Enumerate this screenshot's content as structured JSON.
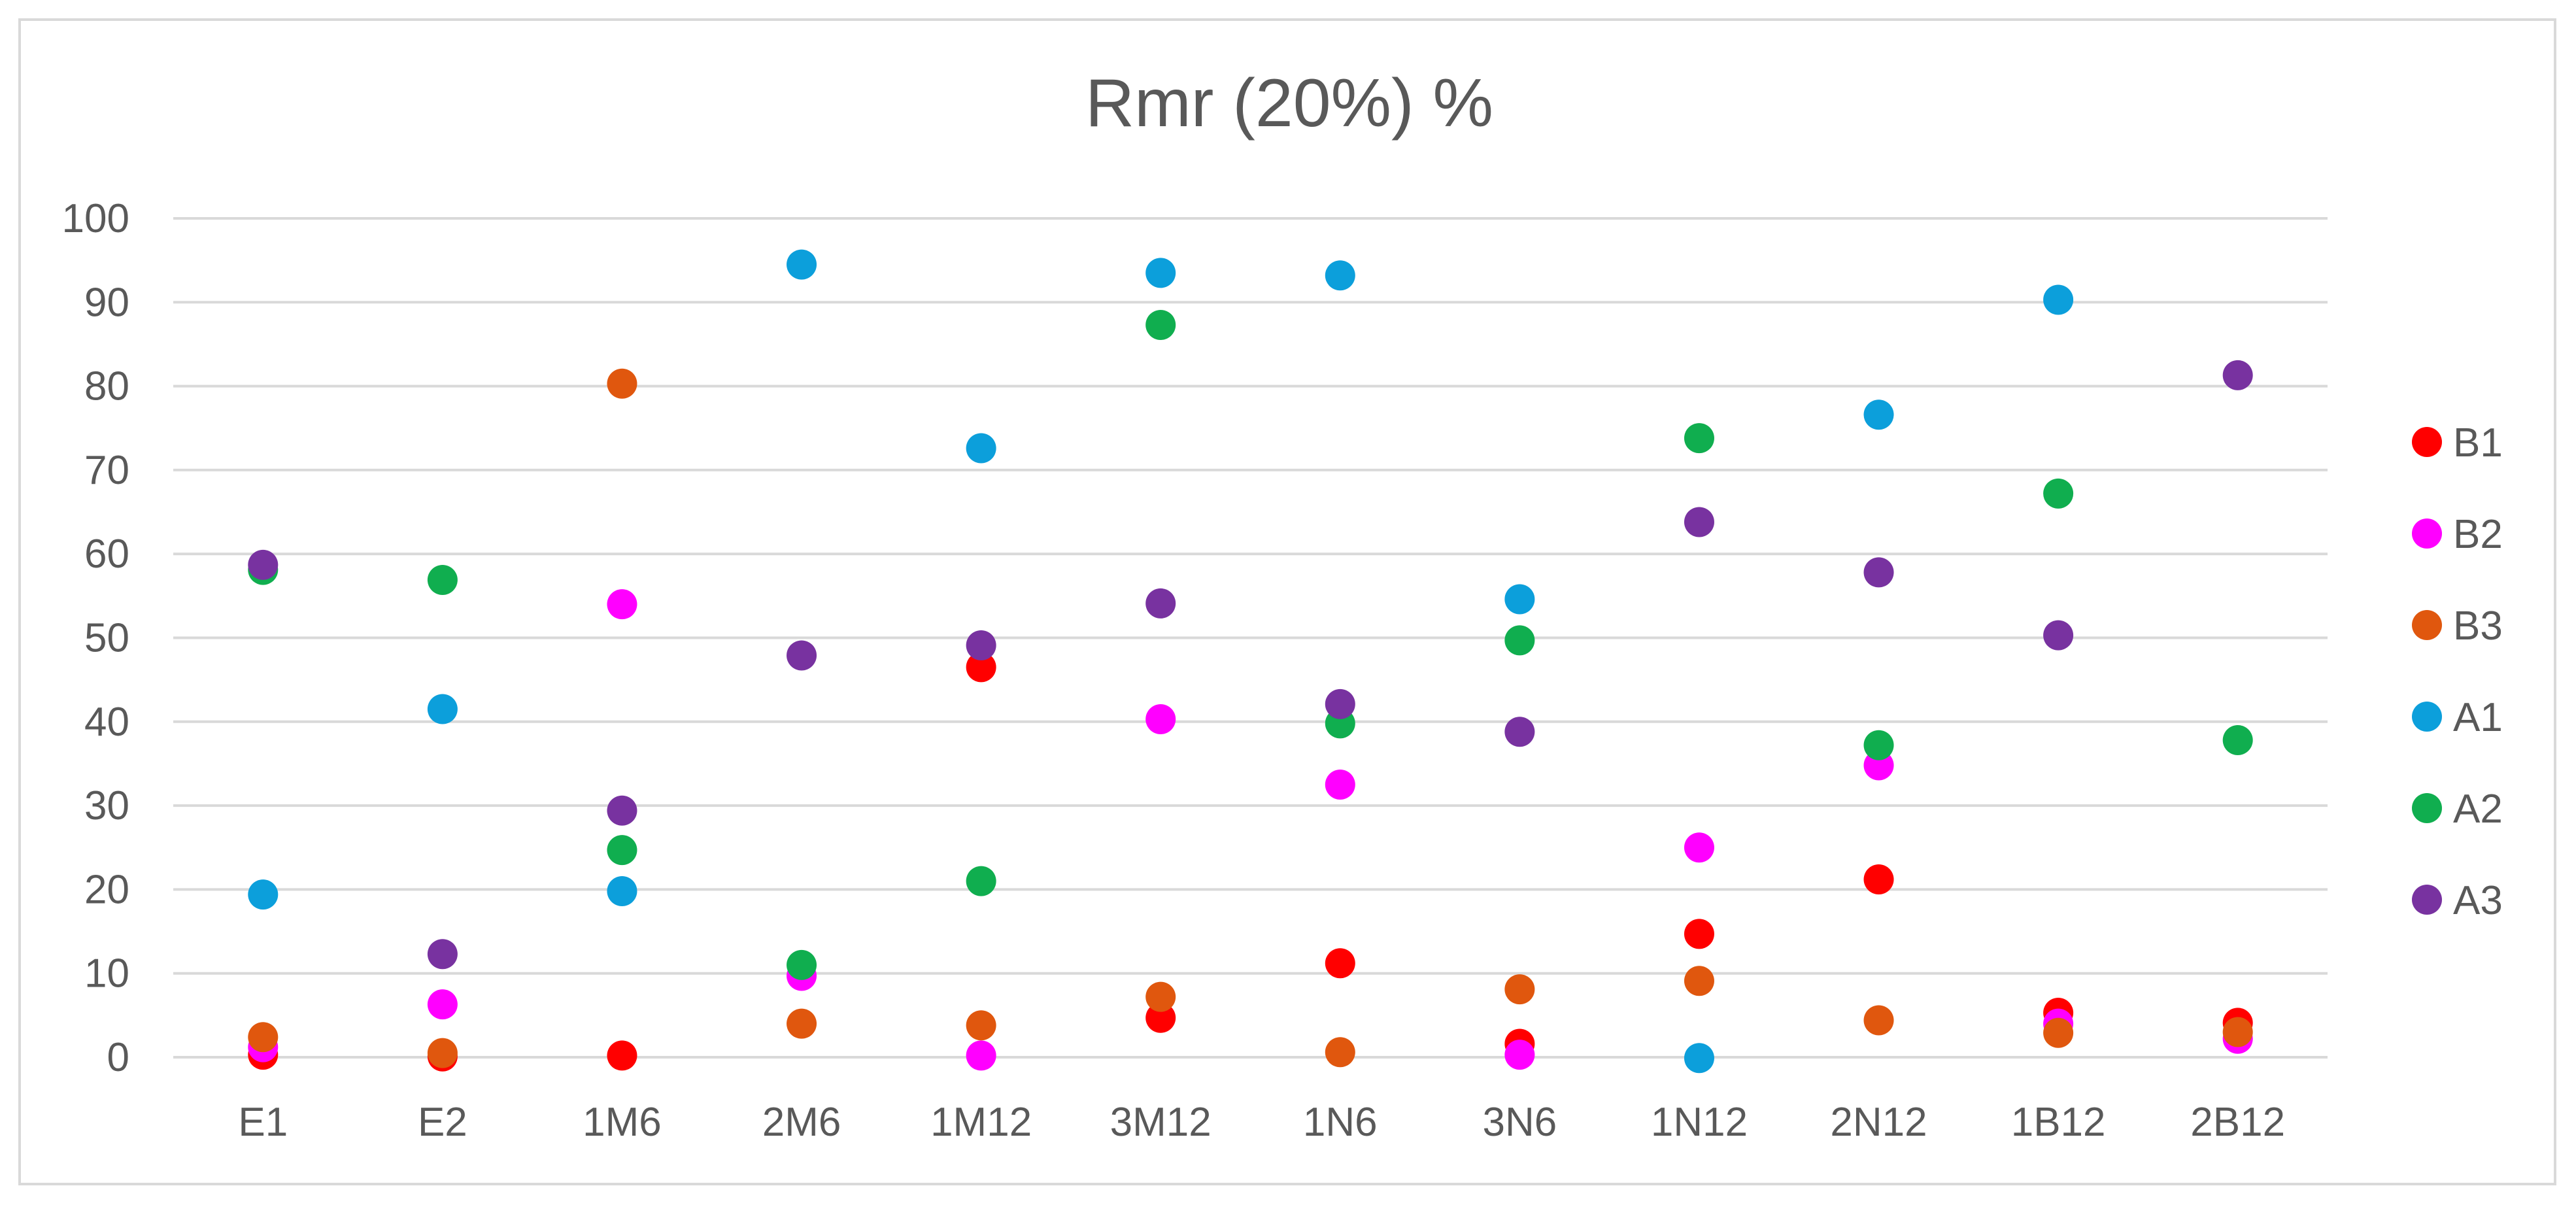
{
  "chart_data": {
    "type": "scatter",
    "title": "Rmr (20%)  %",
    "xlabel": "",
    "ylabel": "",
    "categories": [
      "E1",
      "E2",
      "1M6",
      "2M6",
      "1M12",
      "3M12",
      "1N6",
      "3N6",
      "1N12",
      "2N12",
      "1B12",
      "2B12"
    ],
    "ylim": [
      0,
      100
    ],
    "yticks": [
      0,
      10,
      20,
      30,
      40,
      50,
      60,
      70,
      80,
      90,
      100
    ],
    "grid": true,
    "legend_position": "right",
    "series": [
      {
        "name": "B1",
        "color": "#ff0000",
        "values": [
          0.3,
          0.1,
          0.2,
          null,
          46.5,
          4.7,
          11.2,
          1.6,
          14.7,
          21.2,
          5.3,
          4.1
        ]
      },
      {
        "name": "B2",
        "color": "#ff00ff",
        "values": [
          1.2,
          6.3,
          54.0,
          9.7,
          0.2,
          40.3,
          32.5,
          0.3,
          25.0,
          34.8,
          4.0,
          2.2
        ]
      },
      {
        "name": "B3",
        "color": "#e0570e",
        "values": [
          2.4,
          0.5,
          80.3,
          4.0,
          3.8,
          7.2,
          0.6,
          8.1,
          9.1,
          4.4,
          2.9,
          3.0
        ]
      },
      {
        "name": "A1",
        "color": "#0c9fdb",
        "values": [
          19.4,
          41.5,
          19.8,
          94.5,
          72.6,
          93.5,
          93.2,
          54.6,
          -0.1,
          76.6,
          90.3,
          null
        ]
      },
      {
        "name": "A2",
        "color": "#10ae4f",
        "values": [
          58.1,
          56.9,
          24.7,
          11.0,
          21.0,
          87.3,
          39.8,
          49.7,
          73.8,
          37.2,
          67.2,
          37.8
        ]
      },
      {
        "name": "A3",
        "color": "#7832a0",
        "values": [
          58.7,
          12.3,
          29.4,
          47.9,
          49.1,
          54.1,
          42.1,
          38.8,
          63.8,
          57.8,
          50.3,
          81.3
        ]
      }
    ]
  }
}
